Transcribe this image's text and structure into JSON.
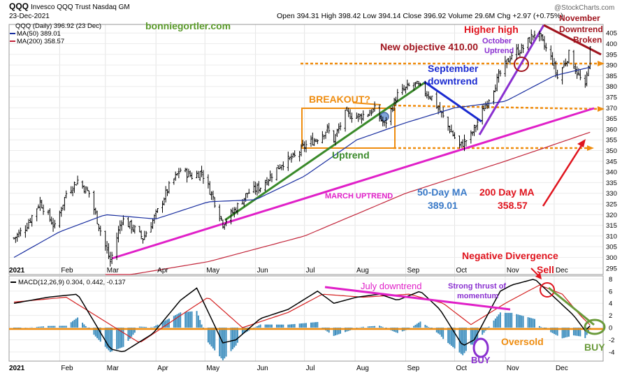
{
  "header": {
    "symbol": "QQQ",
    "name": "Invesco QQQ Trust Nasdaq GM",
    "date": "23-Dec-2021",
    "quote": "Open 394.31  High 398.42  Low 394.14  Close 396.92  Volume 29.6M  Chg +2.97 (+0.75%)",
    "credit": "@StockCharts.com",
    "watermark": "bonniegortler.com"
  },
  "legend": [
    {
      "label": "QQQ (Daily) 396.92 (23 Dec)",
      "color": "#000000"
    },
    {
      "label": "MA(50) 389.01",
      "color": "#1a2fa0"
    },
    {
      "label": "MA(200) 358.57",
      "color": "#c2253a"
    }
  ],
  "macd_legend": {
    "label": "MACD(12,26,9) 0.304, 0.442, -0.137",
    "signal_color": "#d42020",
    "macd_color": "#000000",
    "hist_color": "#3f8fbf"
  },
  "annotations": {
    "higher_high": "Higher high",
    "november": "November",
    "downtrend": "Downtrend",
    "broken": "Broken",
    "new_objective": "New objective 410.00",
    "october": "October",
    "uptrend_oct": "Uptrend",
    "september": "September",
    "downtrend_sep": "downtrend",
    "breakout": "BREAKOUT?",
    "uptrend": "Uptrend",
    "march_uptrend": "MARCH UPTREND",
    "ma50_title": "50-Day MA",
    "ma50_value": "389.01",
    "ma200_title": "200 Day MA",
    "ma200_value": "358.57",
    "negative_divergence": "Negative Divergence",
    "sell": "Sell",
    "july_downtrend": "July downtrend",
    "strong_thrust": "Strong thrust of",
    "momentum": "momentum",
    "oversold": "Oversold",
    "buy_oct": "BUY",
    "buy_dec": "BUY"
  },
  "chart_data": [
    {
      "type": "ohlc",
      "title": "QQQ (Daily)",
      "x_ticks": [
        "2021",
        "Feb",
        "Mar",
        "Apr",
        "May",
        "Jun",
        "Jul",
        "Aug",
        "Sep",
        "Oct",
        "Nov",
        "Dec"
      ],
      "y_ticks": [
        295,
        300,
        305,
        310,
        315,
        320,
        325,
        330,
        335,
        340,
        345,
        350,
        355,
        360,
        365,
        370,
        375,
        380,
        385,
        390,
        395,
        400,
        405
      ],
      "ylim": [
        292,
        409
      ],
      "price_points": [
        [
          "2021-01-04",
          309
        ],
        [
          "2021-01-11",
          314
        ],
        [
          "2021-01-20",
          326
        ],
        [
          "2021-01-29",
          314
        ],
        [
          "2021-02-05",
          330
        ],
        [
          "2021-02-12",
          336
        ],
        [
          "2021-02-19",
          330
        ],
        [
          "2021-02-25",
          315
        ],
        [
          "2021-03-04",
          298
        ],
        [
          "2021-03-11",
          318
        ],
        [
          "2021-03-19",
          313
        ],
        [
          "2021-03-24",
          309
        ],
        [
          "2021-04-01",
          320
        ],
        [
          "2021-04-09",
          333
        ],
        [
          "2021-04-16",
          341
        ],
        [
          "2021-04-23",
          338
        ],
        [
          "2021-04-29",
          340
        ],
        [
          "2021-05-06",
          328
        ],
        [
          "2021-05-12",
          316
        ],
        [
          "2021-05-19",
          322
        ],
        [
          "2021-05-27",
          330
        ],
        [
          "2021-06-04",
          333
        ],
        [
          "2021-06-10",
          338
        ],
        [
          "2021-06-17",
          344
        ],
        [
          "2021-06-25",
          347
        ],
        [
          "2021-07-01",
          352
        ],
        [
          "2021-07-09",
          356
        ],
        [
          "2021-07-15",
          360
        ],
        [
          "2021-07-19",
          355
        ],
        [
          "2021-07-26",
          367
        ],
        [
          "2021-08-04",
          366
        ],
        [
          "2021-08-13",
          369
        ],
        [
          "2021-08-19",
          362
        ],
        [
          "2021-08-27",
          376
        ],
        [
          "2021-09-03",
          380
        ],
        [
          "2021-09-07",
          381
        ],
        [
          "2021-09-17",
          375
        ],
        [
          "2021-09-28",
          360
        ],
        [
          "2021-10-04",
          352
        ],
        [
          "2021-10-11",
          357
        ],
        [
          "2021-10-21",
          373
        ],
        [
          "2021-10-29",
          386
        ],
        [
          "2021-11-05",
          395
        ],
        [
          "2021-11-12",
          398
        ],
        [
          "2021-11-19",
          405
        ],
        [
          "2021-11-22",
          403
        ],
        [
          "2021-11-30",
          392
        ],
        [
          "2021-12-03",
          384
        ],
        [
          "2021-12-10",
          395
        ],
        [
          "2021-12-16",
          385
        ],
        [
          "2021-12-20",
          379
        ],
        [
          "2021-12-23",
          397
        ]
      ],
      "ma50_points": [
        [
          "2021-01-04",
          300
        ],
        [
          "2021-02-01",
          312
        ],
        [
          "2021-03-01",
          320
        ],
        [
          "2021-04-01",
          318
        ],
        [
          "2021-05-03",
          326
        ],
        [
          "2021-06-01",
          327
        ],
        [
          "2021-07-01",
          338
        ],
        [
          "2021-08-02",
          355
        ],
        [
          "2021-09-01",
          363
        ],
        [
          "2021-10-01",
          370
        ],
        [
          "2021-11-01",
          373
        ],
        [
          "2021-12-01",
          385
        ],
        [
          "2021-12-23",
          389.01
        ]
      ],
      "ma200_points": [
        [
          "2021-03-01",
          290
        ],
        [
          "2021-05-03",
          298
        ],
        [
          "2021-07-01",
          310
        ],
        [
          "2021-09-01",
          330
        ],
        [
          "2021-11-01",
          345
        ],
        [
          "2021-12-23",
          358.57
        ]
      ]
    },
    {
      "type": "macd",
      "title": "MACD(12,26,9)",
      "values": {
        "macd": 0.304,
        "signal": 0.442,
        "histogram": -0.137
      },
      "y_ticks": [
        -4,
        -2,
        0,
        2,
        4,
        6,
        8
      ],
      "ylim": [
        -5.5,
        8.5
      ],
      "x_ticks": [
        "2021",
        "Feb",
        "Mar",
        "Apr",
        "May",
        "Jun",
        "Jul",
        "Aug",
        "Sep",
        "Oct",
        "Nov",
        "Dec"
      ],
      "macd_points": [
        [
          "2021-01-04",
          4
        ],
        [
          "2021-01-25",
          5
        ],
        [
          "2021-02-12",
          5.5
        ],
        [
          "2021-03-04",
          -3.5
        ],
        [
          "2021-03-12",
          -4
        ],
        [
          "2021-03-30",
          -1
        ],
        [
          "2021-04-16",
          4.5
        ],
        [
          "2021-04-26",
          6.5
        ],
        [
          "2021-05-12",
          -2.5
        ],
        [
          "2021-05-20",
          -2
        ],
        [
          "2021-06-04",
          1.5
        ],
        [
          "2021-06-21",
          3
        ],
        [
          "2021-07-09",
          6
        ],
        [
          "2021-07-19",
          4
        ],
        [
          "2021-08-02",
          5
        ],
        [
          "2021-08-16",
          5.5
        ],
        [
          "2021-08-27",
          4.5
        ],
        [
          "2021-09-10",
          6
        ],
        [
          "2021-09-22",
          3
        ],
        [
          "2021-10-06",
          -3
        ],
        [
          "2021-10-13",
          -2
        ],
        [
          "2021-10-29",
          6
        ],
        [
          "2021-11-05",
          7
        ],
        [
          "2021-11-19",
          8
        ],
        [
          "2021-12-01",
          5
        ],
        [
          "2021-12-13",
          2
        ],
        [
          "2021-12-20",
          -0.5
        ],
        [
          "2021-12-23",
          0.304
        ]
      ],
      "signal_points": [
        [
          "2021-01-04",
          4.2
        ],
        [
          "2021-02-05",
          5
        ],
        [
          "2021-03-04",
          0.5
        ],
        [
          "2021-03-22",
          -2.5
        ],
        [
          "2021-04-16",
          2
        ],
        [
          "2021-05-03",
          5
        ],
        [
          "2021-05-24",
          0
        ],
        [
          "2021-06-21",
          2.5
        ],
        [
          "2021-07-12",
          5.5
        ],
        [
          "2021-08-06",
          5
        ],
        [
          "2021-09-03",
          5.5
        ],
        [
          "2021-09-24",
          4
        ],
        [
          "2021-10-11",
          0.5
        ],
        [
          "2021-11-01",
          4
        ],
        [
          "2021-11-22",
          7
        ],
        [
          "2021-12-06",
          5.5
        ],
        [
          "2021-12-17",
          2
        ],
        [
          "2021-12-23",
          0.442
        ]
      ]
    }
  ]
}
